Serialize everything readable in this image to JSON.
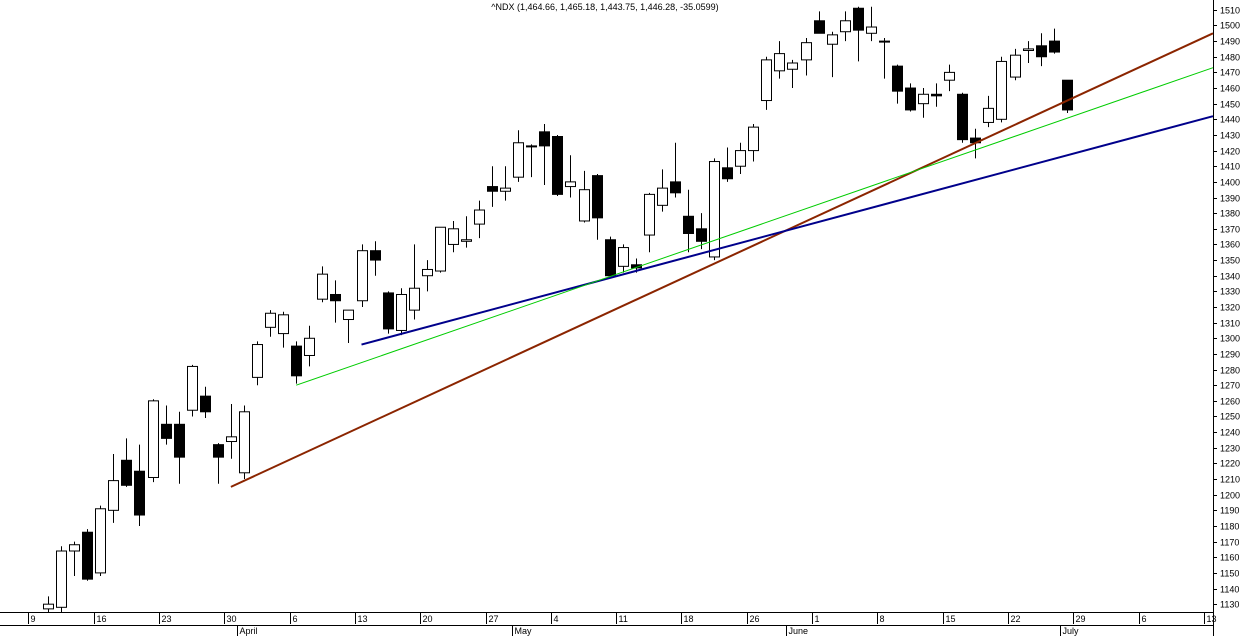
{
  "chart_data": {
    "type": "candlestick",
    "title": "^NDX (1,464.66, 1,465.18, 1,443.75, 1,446.28, -35.0599)",
    "xlabel": "",
    "ylabel": "",
    "ylim": [
      1125,
      1515
    ],
    "y_ticks": [
      1130,
      1140,
      1150,
      1160,
      1170,
      1180,
      1190,
      1200,
      1210,
      1220,
      1230,
      1240,
      1250,
      1260,
      1270,
      1280,
      1290,
      1300,
      1310,
      1320,
      1330,
      1340,
      1350,
      1360,
      1370,
      1380,
      1390,
      1400,
      1410,
      1420,
      1430,
      1440,
      1450,
      1460,
      1470,
      1480,
      1490,
      1500,
      1510
    ],
    "x_day_ticks": [
      {
        "day": 0,
        "label": "9"
      },
      {
        "day": 5,
        "label": "16"
      },
      {
        "day": 10,
        "label": "23"
      },
      {
        "day": 15,
        "label": "30"
      },
      {
        "day": 20,
        "label": "6"
      },
      {
        "day": 25,
        "label": "13"
      },
      {
        "day": 30,
        "label": "20"
      },
      {
        "day": 35,
        "label": "27"
      },
      {
        "day": 40,
        "label": "4"
      },
      {
        "day": 45,
        "label": "11"
      },
      {
        "day": 50,
        "label": "18"
      },
      {
        "day": 55,
        "label": "26"
      },
      {
        "day": 60,
        "label": "1"
      },
      {
        "day": 65,
        "label": "8"
      },
      {
        "day": 70,
        "label": "15"
      },
      {
        "day": 75,
        "label": "22"
      },
      {
        "day": 80,
        "label": "29"
      },
      {
        "day": 85,
        "label": "6"
      },
      {
        "day": 90,
        "label": "13"
      }
    ],
    "x_month_ticks": [
      {
        "day": 16,
        "label": "April"
      },
      {
        "day": 37,
        "label": "May"
      },
      {
        "day": 58,
        "label": "June"
      },
      {
        "day": 79,
        "label": "July"
      }
    ],
    "candles": [
      {
        "day": 1,
        "o": 1127,
        "h": 1135,
        "l": 1125,
        "c": 1130
      },
      {
        "day": 2,
        "o": 1128,
        "h": 1167,
        "l": 1125,
        "c": 1164
      },
      {
        "day": 3,
        "o": 1164,
        "h": 1170,
        "l": 1148,
        "c": 1168
      },
      {
        "day": 4,
        "o": 1176,
        "h": 1178,
        "l": 1145,
        "c": 1146
      },
      {
        "day": 5,
        "o": 1150,
        "h": 1193,
        "l": 1148,
        "c": 1191
      },
      {
        "day": 6,
        "o": 1190,
        "h": 1226,
        "l": 1182,
        "c": 1209
      },
      {
        "day": 7,
        "o": 1222,
        "h": 1236,
        "l": 1205,
        "c": 1206
      },
      {
        "day": 8,
        "o": 1215,
        "h": 1232,
        "l": 1180,
        "c": 1187
      },
      {
        "day": 9,
        "o": 1211,
        "h": 1261,
        "l": 1208,
        "c": 1260
      },
      {
        "day": 10,
        "o": 1245,
        "h": 1257,
        "l": 1232,
        "c": 1236
      },
      {
        "day": 11,
        "o": 1245,
        "h": 1253,
        "l": 1207,
        "c": 1224
      },
      {
        "day": 12,
        "o": 1254,
        "h": 1283,
        "l": 1250,
        "c": 1282
      },
      {
        "day": 13,
        "o": 1263,
        "h": 1269,
        "l": 1249,
        "c": 1253
      },
      {
        "day": 14,
        "o": 1232,
        "h": 1233,
        "l": 1207,
        "c": 1224
      },
      {
        "day": 15,
        "o": 1234,
        "h": 1258,
        "l": 1223,
        "c": 1237
      },
      {
        "day": 16,
        "o": 1214,
        "h": 1257,
        "l": 1210,
        "c": 1253
      },
      {
        "day": 17,
        "o": 1275,
        "h": 1298,
        "l": 1270,
        "c": 1296
      },
      {
        "day": 18,
        "o": 1307,
        "h": 1318,
        "l": 1301,
        "c": 1316
      },
      {
        "day": 19,
        "o": 1303,
        "h": 1317,
        "l": 1294,
        "c": 1315
      },
      {
        "day": 20,
        "o": 1295,
        "h": 1298,
        "l": 1271,
        "c": 1276
      },
      {
        "day": 21,
        "o": 1289,
        "h": 1308,
        "l": 1282,
        "c": 1300
      },
      {
        "day": 22,
        "o": 1325,
        "h": 1346,
        "l": 1323,
        "c": 1341
      },
      {
        "day": 23,
        "o": 1328,
        "h": 1337,
        "l": 1310,
        "c": 1324
      },
      {
        "day": 24,
        "o": 1312,
        "h": 1318,
        "l": 1297,
        "c": 1318
      },
      {
        "day": 25,
        "o": 1324,
        "h": 1360,
        "l": 1320,
        "c": 1356
      },
      {
        "day": 26,
        "o": 1356,
        "h": 1362,
        "l": 1340,
        "c": 1350
      },
      {
        "day": 27,
        "o": 1329,
        "h": 1330,
        "l": 1303,
        "c": 1306
      },
      {
        "day": 28,
        "o": 1305,
        "h": 1332,
        "l": 1302,
        "c": 1328
      },
      {
        "day": 29,
        "o": 1318,
        "h": 1360,
        "l": 1312,
        "c": 1332
      },
      {
        "day": 30,
        "o": 1340,
        "h": 1350,
        "l": 1330,
        "c": 1344
      },
      {
        "day": 31,
        "o": 1343,
        "h": 1371,
        "l": 1342,
        "c": 1371
      },
      {
        "day": 32,
        "o": 1360,
        "h": 1375,
        "l": 1355,
        "c": 1370
      },
      {
        "day": 33,
        "o": 1362,
        "h": 1378,
        "l": 1358,
        "c": 1363
      },
      {
        "day": 34,
        "o": 1373,
        "h": 1388,
        "l": 1364,
        "c": 1382
      },
      {
        "day": 35,
        "o": 1397,
        "h": 1410,
        "l": 1384,
        "c": 1394
      },
      {
        "day": 36,
        "o": 1394,
        "h": 1410,
        "l": 1388,
        "c": 1396
      },
      {
        "day": 37,
        "o": 1403,
        "h": 1433,
        "l": 1400,
        "c": 1425
      },
      {
        "day": 38,
        "o": 1423,
        "h": 1424,
        "l": 1403,
        "c": 1423
      },
      {
        "day": 39,
        "o": 1432,
        "h": 1437,
        "l": 1398,
        "c": 1423
      },
      {
        "day": 40,
        "o": 1429,
        "h": 1430,
        "l": 1391,
        "c": 1392
      },
      {
        "day": 41,
        "o": 1397,
        "h": 1417,
        "l": 1390,
        "c": 1400
      },
      {
        "day": 42,
        "o": 1375,
        "h": 1407,
        "l": 1374,
        "c": 1395
      },
      {
        "day": 43,
        "o": 1404,
        "h": 1405,
        "l": 1363,
        "c": 1377
      },
      {
        "day": 44,
        "o": 1363,
        "h": 1365,
        "l": 1340,
        "c": 1340
      },
      {
        "day": 45,
        "o": 1346,
        "h": 1360,
        "l": 1342,
        "c": 1358
      },
      {
        "day": 46,
        "o": 1347,
        "h": 1351,
        "l": 1342,
        "c": 1345
      },
      {
        "day": 47,
        "o": 1366,
        "h": 1393,
        "l": 1355,
        "c": 1392
      },
      {
        "day": 48,
        "o": 1385,
        "h": 1408,
        "l": 1381,
        "c": 1396
      },
      {
        "day": 49,
        "o": 1400,
        "h": 1425,
        "l": 1390,
        "c": 1393
      },
      {
        "day": 50,
        "o": 1378,
        "h": 1395,
        "l": 1355,
        "c": 1367
      },
      {
        "day": 51,
        "o": 1370,
        "h": 1380,
        "l": 1357,
        "c": 1362
      },
      {
        "day": 52,
        "o": 1352,
        "h": 1415,
        "l": 1350,
        "c": 1413
      },
      {
        "day": 53,
        "o": 1409,
        "h": 1422,
        "l": 1400,
        "c": 1402
      },
      {
        "day": 54,
        "o": 1410,
        "h": 1425,
        "l": 1405,
        "c": 1420
      },
      {
        "day": 55,
        "o": 1420,
        "h": 1437,
        "l": 1413,
        "c": 1435
      },
      {
        "day": 56,
        "o": 1452,
        "h": 1480,
        "l": 1446,
        "c": 1478
      },
      {
        "day": 57,
        "o": 1471,
        "h": 1490,
        "l": 1466,
        "c": 1482
      },
      {
        "day": 58,
        "o": 1472,
        "h": 1478,
        "l": 1460,
        "c": 1476
      },
      {
        "day": 59,
        "o": 1478,
        "h": 1492,
        "l": 1468,
        "c": 1489
      },
      {
        "day": 60,
        "o": 1503,
        "h": 1509,
        "l": 1495,
        "c": 1495
      },
      {
        "day": 61,
        "o": 1488,
        "h": 1496,
        "l": 1467,
        "c": 1494
      },
      {
        "day": 62,
        "o": 1496,
        "h": 1509,
        "l": 1490,
        "c": 1503
      },
      {
        "day": 63,
        "o": 1511,
        "h": 1512,
        "l": 1477,
        "c": 1497
      },
      {
        "day": 64,
        "o": 1495,
        "h": 1512,
        "l": 1490,
        "c": 1499
      },
      {
        "day": 65,
        "o": 1490,
        "h": 1492,
        "l": 1466,
        "c": 1490
      },
      {
        "day": 66,
        "o": 1474,
        "h": 1475,
        "l": 1450,
        "c": 1458
      },
      {
        "day": 67,
        "o": 1460,
        "h": 1463,
        "l": 1445,
        "c": 1446
      },
      {
        "day": 68,
        "o": 1450,
        "h": 1460,
        "l": 1441,
        "c": 1456
      },
      {
        "day": 69,
        "o": 1456,
        "h": 1463,
        "l": 1448,
        "c": 1455
      },
      {
        "day": 70,
        "o": 1465,
        "h": 1475,
        "l": 1458,
        "c": 1470
      },
      {
        "day": 71,
        "o": 1456,
        "h": 1457,
        "l": 1425,
        "c": 1427
      },
      {
        "day": 72,
        "o": 1428,
        "h": 1434,
        "l": 1415,
        "c": 1425
      },
      {
        "day": 73,
        "o": 1438,
        "h": 1455,
        "l": 1435,
        "c": 1447
      },
      {
        "day": 74,
        "o": 1440,
        "h": 1480,
        "l": 1438,
        "c": 1477
      },
      {
        "day": 75,
        "o": 1467,
        "h": 1485,
        "l": 1465,
        "c": 1481
      },
      {
        "day": 76,
        "o": 1484,
        "h": 1490,
        "l": 1476,
        "c": 1485
      },
      {
        "day": 77,
        "o": 1487,
        "h": 1495,
        "l": 1474,
        "c": 1480
      },
      {
        "day": 78,
        "o": 1490,
        "h": 1498,
        "l": 1482,
        "c": 1483
      },
      {
        "day": 79,
        "o": 1465,
        "h": 1465,
        "l": 1444,
        "c": 1446
      }
    ],
    "trendlines": [
      {
        "color": "#8b2500",
        "from": {
          "day": 15,
          "value": 1205
        },
        "to": {
          "day": 91,
          "value": 1495
        }
      },
      {
        "color": "#00008b",
        "from": {
          "day": 25,
          "value": 1296
        },
        "to": {
          "day": 91,
          "value": 1442
        }
      },
      {
        "color": "#00cc00",
        "from": {
          "day": 20,
          "value": 1270
        },
        "to": {
          "day": 91,
          "value": 1473
        }
      }
    ]
  }
}
